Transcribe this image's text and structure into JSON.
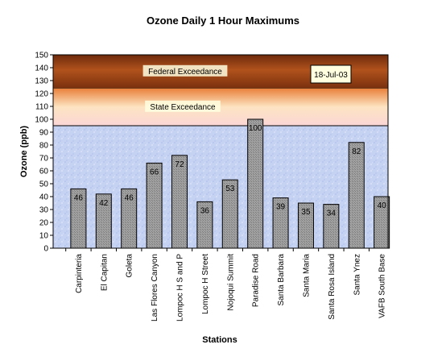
{
  "chart_data": {
    "type": "bar",
    "title": "Ozone Daily 1 Hour Maximums",
    "xlabel": "Stations",
    "ylabel": "Ozone (ppb)",
    "ylim": [
      0,
      150
    ],
    "yticks": [
      0,
      10,
      20,
      30,
      40,
      50,
      60,
      70,
      80,
      90,
      100,
      110,
      120,
      130,
      140,
      150
    ],
    "categories": [
      "Carpinteria",
      "El Capitan",
      "Goleta",
      "Las Flores Canyon",
      "Lompoc H S and P",
      "Lompoc H Street",
      "Nojoqui Summit",
      "Paradise Road",
      "Santa Barbara",
      "Santa Maria",
      "Santa Rosa Island",
      "Santa Ynez",
      "VAFB South Base"
    ],
    "values": [
      46,
      42,
      46,
      66,
      72,
      36,
      53,
      100,
      39,
      35,
      34,
      82,
      40
    ],
    "date_label": "18-Jul-03",
    "thresholds": [
      {
        "label": "Federal Exceedance",
        "from": 124,
        "to": 150,
        "color": "#8a3a12"
      },
      {
        "label": "State Exceedance",
        "from": 95,
        "to": 124,
        "color": "#f4a050"
      }
    ],
    "bar_color": "#9a9a9a",
    "background_color": "#c8d4f4",
    "grid": false
  }
}
